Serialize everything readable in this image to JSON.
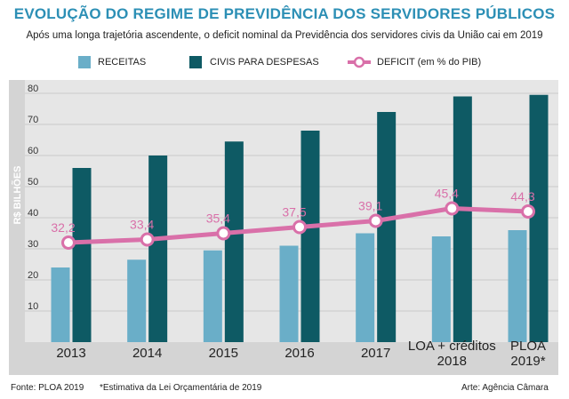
{
  "header": {
    "title": "EVOLUÇÃO DO REGIME DE PREVIDÊNCIA DOS SERVIDORES PÚBLICOS",
    "subtitle": "Após uma longa trajetória ascendente, o deficit nominal da Previdência dos servidores civis da União cai em 2019"
  },
  "legend": {
    "receitas": "RECEITAS",
    "despesas": "CIVIS PARA DESPESAS",
    "deficit": "DEFICIT (em % do PIB)"
  },
  "colors": {
    "receitas": "#6aaec8",
    "despesas": "#0e5a64",
    "deficit": "#d970a9",
    "title": "#2c8fb5",
    "plot_bg": "#e6e6e6",
    "axis_bar": "#d4d4d4"
  },
  "chart_data": {
    "type": "bar",
    "ylabel": "R$ BILHÕES",
    "ylim": [
      0,
      80
    ],
    "yticks": [
      10,
      20,
      30,
      40,
      50,
      60,
      70,
      80
    ],
    "categories": [
      [
        "2013"
      ],
      [
        "2014"
      ],
      [
        "2015"
      ],
      [
        "2016"
      ],
      [
        "2017"
      ],
      [
        "LOA + créditos",
        "2018"
      ],
      [
        "PLOA",
        "2019*"
      ]
    ],
    "series": [
      {
        "name": "RECEITAS",
        "values": [
          24,
          26.5,
          29.5,
          31,
          35,
          34,
          36
        ]
      },
      {
        "name": "CIVIS PARA DESPESAS",
        "values": [
          56,
          60,
          64.5,
          68,
          74,
          79,
          79.5
        ]
      }
    ],
    "line": {
      "name": "DEFICIT (em % do PIB)",
      "labels": [
        "32,2",
        "33,4",
        "35,4",
        "37,5",
        "39,1",
        "45,4",
        "44,3"
      ],
      "y_on_axis": [
        32,
        33,
        35,
        37,
        39,
        43,
        42
      ]
    }
  },
  "footer": {
    "source": "Fonte: PLOA 2019",
    "note": "*Estimativa da Lei Orçamentária de 2019",
    "credit": "Arte: Agência Câmara"
  }
}
